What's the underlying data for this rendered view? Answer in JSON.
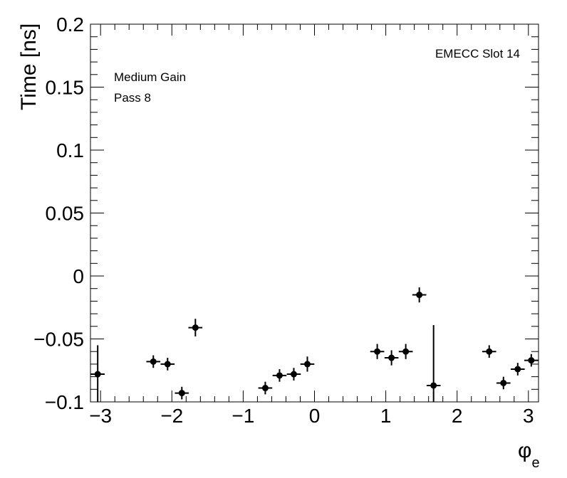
{
  "chart_data": {
    "type": "scatter",
    "title": "",
    "xlabel": "φ",
    "xlabel_sub": "e",
    "ylabel": "Time [ns]",
    "xlim": [
      -3.14159,
      3.14159
    ],
    "ylim": [
      -0.1,
      0.2
    ],
    "xticks": [
      -3,
      -2,
      -1,
      0,
      1,
      2,
      3
    ],
    "xtick_labels": [
      "−3",
      "−2",
      "−1",
      "0",
      "1",
      "2",
      "3"
    ],
    "yticks": [
      -0.1,
      -0.05,
      0,
      0.05,
      0.1,
      0.15,
      0.2
    ],
    "ytick_labels": [
      "−0.1",
      "−0.05",
      "0",
      "0.05",
      "0.1",
      "0.15",
      "0.2"
    ],
    "grid": false,
    "annotations": [
      "Medium Gain",
      "Pass 8",
      "EMECC Slot 14"
    ],
    "series": [
      {
        "points": [
          {
            "x": -3.04,
            "y": -0.078,
            "xerr": 0.098,
            "yerr_low": 0.022,
            "yerr_high": 0.023
          },
          {
            "x": -2.26,
            "y": -0.068,
            "xerr": 0.098,
            "yerr_low": 0.005,
            "yerr_high": 0.005
          },
          {
            "x": -2.06,
            "y": -0.07,
            "xerr": 0.098,
            "yerr_low": 0.005,
            "yerr_high": 0.005
          },
          {
            "x": -1.86,
            "y": -0.093,
            "xerr": 0.098,
            "yerr_low": 0.005,
            "yerr_high": 0.005
          },
          {
            "x": -1.67,
            "y": -0.041,
            "xerr": 0.098,
            "yerr_low": 0.007,
            "yerr_high": 0.007
          },
          {
            "x": -0.69,
            "y": -0.089,
            "xerr": 0.098,
            "yerr_low": 0.005,
            "yerr_high": 0.005
          },
          {
            "x": -0.49,
            "y": -0.079,
            "xerr": 0.098,
            "yerr_low": 0.005,
            "yerr_high": 0.005
          },
          {
            "x": -0.29,
            "y": -0.078,
            "xerr": 0.098,
            "yerr_low": 0.005,
            "yerr_high": 0.005
          },
          {
            "x": -0.1,
            "y": -0.07,
            "xerr": 0.098,
            "yerr_low": 0.006,
            "yerr_high": 0.006
          },
          {
            "x": 0.88,
            "y": -0.06,
            "xerr": 0.098,
            "yerr_low": 0.006,
            "yerr_high": 0.006
          },
          {
            "x": 1.08,
            "y": -0.065,
            "xerr": 0.098,
            "yerr_low": 0.006,
            "yerr_high": 0.006
          },
          {
            "x": 1.28,
            "y": -0.06,
            "xerr": 0.098,
            "yerr_low": 0.006,
            "yerr_high": 0.006
          },
          {
            "x": 1.47,
            "y": -0.015,
            "xerr": 0.098,
            "yerr_low": 0.006,
            "yerr_high": 0.006
          },
          {
            "x": 1.67,
            "y": -0.087,
            "xerr": 0.098,
            "yerr_low": 0.013,
            "yerr_high": 0.048
          },
          {
            "x": 2.45,
            "y": -0.06,
            "xerr": 0.098,
            "yerr_low": 0.005,
            "yerr_high": 0.005
          },
          {
            "x": 2.65,
            "y": -0.085,
            "xerr": 0.098,
            "yerr_low": 0.005,
            "yerr_high": 0.005
          },
          {
            "x": 2.85,
            "y": -0.074,
            "xerr": 0.098,
            "yerr_low": 0.005,
            "yerr_high": 0.005
          },
          {
            "x": 3.04,
            "y": -0.067,
            "xerr": 0.098,
            "yerr_low": 0.005,
            "yerr_high": 0.005
          }
        ]
      }
    ]
  }
}
